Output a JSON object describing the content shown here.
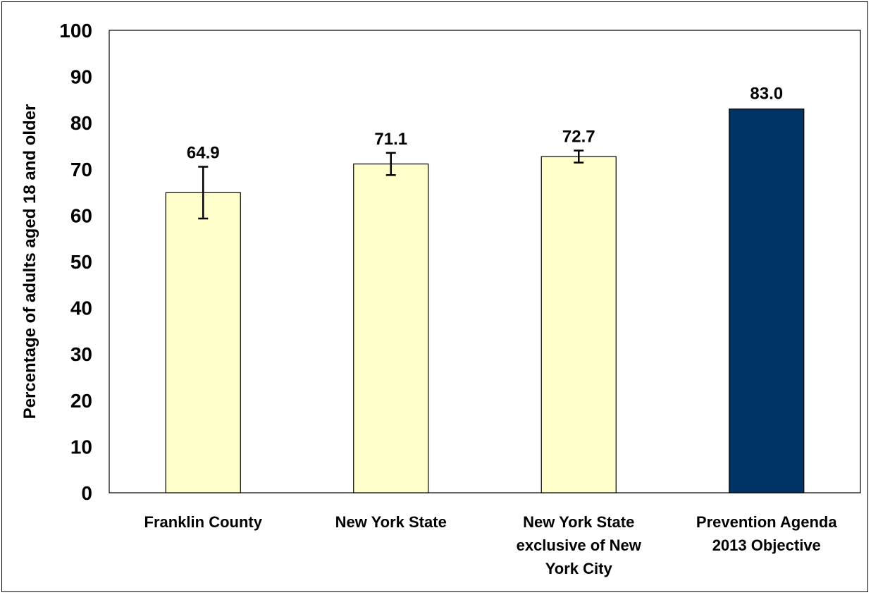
{
  "chart_data": {
    "type": "bar",
    "categories": [
      "Franklin County",
      "New York State",
      "New York State exclusive of New York City",
      "Prevention Agenda 2013 Objective"
    ],
    "category_label_lines": [
      [
        "Franklin County"
      ],
      [
        "New York State"
      ],
      [
        "New York State",
        "exclusive of New",
        "York City"
      ],
      [
        "Prevention Agenda",
        "2013 Objective"
      ]
    ],
    "values": [
      64.9,
      71.1,
      72.7,
      83.0
    ],
    "value_labels": [
      "64.9",
      "71.1",
      "72.7",
      "83.0"
    ],
    "error_low": [
      59.3,
      68.7,
      71.4,
      null
    ],
    "error_high": [
      70.5,
      73.5,
      74.0,
      null
    ],
    "bar_colors": [
      "#FFFFCC",
      "#FFFFCC",
      "#FFFFCC",
      "#003366"
    ],
    "ylabel": "Percentage of adults aged 18 and older",
    "xlabel": "",
    "ylim": [
      0,
      100
    ],
    "yticks": [
      0,
      10,
      20,
      30,
      40,
      50,
      60,
      70,
      80,
      90,
      100
    ],
    "grid": false,
    "legend": "none"
  }
}
